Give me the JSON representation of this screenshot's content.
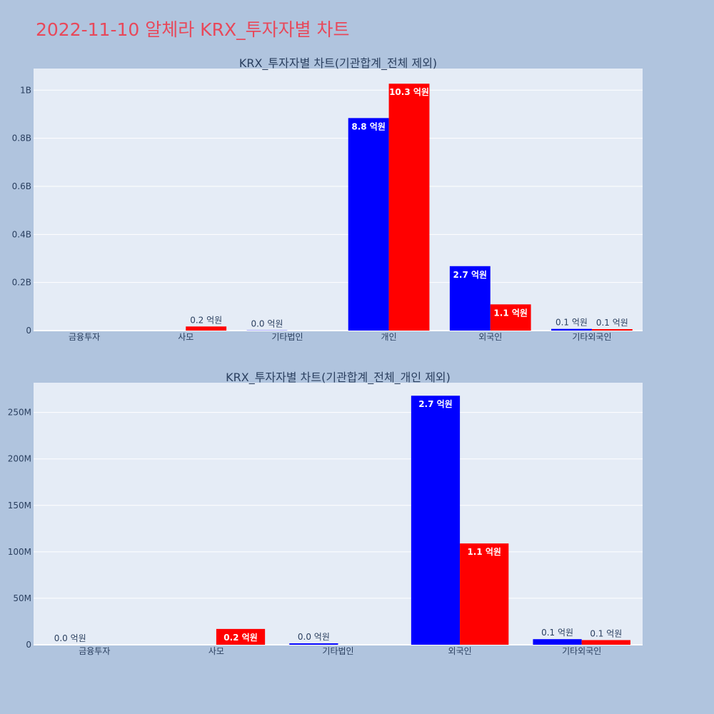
{
  "page": {
    "title": "2022-11-10 알체라 KRX_투자자별 차트"
  },
  "colors": {
    "page_bg": "#b0c4de",
    "plot_bg": "#e5ecf6",
    "series_a": "#0000ff",
    "series_b": "#ff0000",
    "title": "#e8485a",
    "axis_text": "#2a3f5f"
  },
  "chart_data": [
    {
      "type": "bar",
      "title": "KRX_투자자별 차트(기관합계_전체 제외)",
      "categories": [
        "금융투자",
        "사모",
        "기타법인",
        "개인",
        "외국인",
        "기타외국인"
      ],
      "ylim": [
        0,
        1090000000
      ],
      "yticks": [
        0,
        200000000,
        400000000,
        600000000,
        800000000,
        1000000000
      ],
      "ytick_labels": [
        "0",
        "0.2B",
        "0.4B",
        "0.6B",
        "0.8B",
        "1B"
      ],
      "grid": true,
      "series": [
        {
          "color": "#0000ff",
          "values": [
            0,
            0,
            1000000,
            884000000,
            268000000,
            7000000
          ],
          "labels": [
            "",
            "",
            "0.0 억원",
            "8.8 억원",
            "2.7 억원",
            "0.1 억원"
          ]
        },
        {
          "color": "#ff0000",
          "values": [
            0,
            17000000,
            0,
            1027000000,
            109000000,
            6000000
          ],
          "labels": [
            "",
            "0.2 억원",
            "",
            "10.3 억원",
            "1.1 억원",
            "0.1 억원"
          ]
        }
      ]
    },
    {
      "type": "bar",
      "title": "KRX_투자자별 차트(기관합계_전체_개인 제외)",
      "categories": [
        "금융투자",
        "사모",
        "기타법인",
        "외국인",
        "기타외국인"
      ],
      "ylim": [
        0,
        282000000
      ],
      "yticks": [
        0,
        50000000,
        100000000,
        150000000,
        200000000,
        250000000
      ],
      "ytick_labels": [
        "0",
        "50M",
        "100M",
        "150M",
        "200M",
        "250M"
      ],
      "grid": true,
      "series": [
        {
          "color": "#0000ff",
          "values": [
            0,
            0,
            1500000,
            268000000,
            6000000
          ],
          "labels": [
            "0.0 억원",
            "",
            "0.0 억원",
            "2.7 억원",
            "0.1 억원"
          ]
        },
        {
          "color": "#ff0000",
          "values": [
            0,
            17000000,
            0,
            109000000,
            5000000
          ],
          "labels": [
            "",
            "0.2 억원",
            "",
            "1.1 억원",
            "0.1 억원"
          ]
        }
      ]
    }
  ]
}
